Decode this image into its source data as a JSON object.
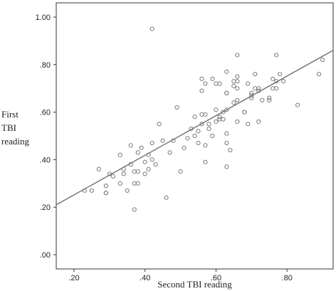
{
  "chart_data": {
    "type": "scatter",
    "xlabel": "Second TBI reading",
    "ylabel_lines": [
      "First",
      "TBI",
      "reading"
    ],
    "xlim": [
      0.15,
      0.93
    ],
    "ylim": [
      -0.06,
      1.06
    ],
    "xticks": [
      0.2,
      0.4,
      0.6,
      0.8
    ],
    "xtick_labels": [
      ".20",
      ".40",
      ".60",
      ".80"
    ],
    "yticks": [
      0.0,
      0.2,
      0.4,
      0.6,
      0.8,
      1.0
    ],
    "ytick_labels": [
      ".00",
      ".20",
      ".40",
      ".60",
      ".80",
      "1.00"
    ],
    "grid": false,
    "fit_line": {
      "x": [
        0.15,
        0.93
      ],
      "y": [
        0.21,
        0.86
      ]
    },
    "points": [
      [
        0.23,
        0.27
      ],
      [
        0.25,
        0.27
      ],
      [
        0.27,
        0.36
      ],
      [
        0.29,
        0.29
      ],
      [
        0.29,
        0.26
      ],
      [
        0.29,
        0.26
      ],
      [
        0.3,
        0.34
      ],
      [
        0.31,
        0.33
      ],
      [
        0.33,
        0.42
      ],
      [
        0.33,
        0.3
      ],
      [
        0.34,
        0.36
      ],
      [
        0.34,
        0.34
      ],
      [
        0.35,
        0.27
      ],
      [
        0.36,
        0.46
      ],
      [
        0.36,
        0.38
      ],
      [
        0.37,
        0.35
      ],
      [
        0.37,
        0.3
      ],
      [
        0.37,
        0.19
      ],
      [
        0.38,
        0.35
      ],
      [
        0.38,
        0.43
      ],
      [
        0.38,
        0.3
      ],
      [
        0.39,
        0.45
      ],
      [
        0.4,
        0.39
      ],
      [
        0.4,
        0.34
      ],
      [
        0.41,
        0.42
      ],
      [
        0.41,
        0.36
      ],
      [
        0.42,
        0.95
      ],
      [
        0.42,
        0.47
      ],
      [
        0.42,
        0.4
      ],
      [
        0.43,
        0.38
      ],
      [
        0.44,
        0.55
      ],
      [
        0.45,
        0.48
      ],
      [
        0.46,
        0.24
      ],
      [
        0.47,
        0.43
      ],
      [
        0.48,
        0.48
      ],
      [
        0.49,
        0.62
      ],
      [
        0.5,
        0.35
      ],
      [
        0.51,
        0.45
      ],
      [
        0.52,
        0.49
      ],
      [
        0.53,
        0.53
      ],
      [
        0.54,
        0.58
      ],
      [
        0.54,
        0.5
      ],
      [
        0.55,
        0.52
      ],
      [
        0.55,
        0.47
      ],
      [
        0.56,
        0.74
      ],
      [
        0.56,
        0.69
      ],
      [
        0.56,
        0.59
      ],
      [
        0.56,
        0.55
      ],
      [
        0.57,
        0.72
      ],
      [
        0.57,
        0.59
      ],
      [
        0.57,
        0.46
      ],
      [
        0.57,
        0.39
      ],
      [
        0.58,
        0.55
      ],
      [
        0.58,
        0.53
      ],
      [
        0.59,
        0.74
      ],
      [
        0.59,
        0.5
      ],
      [
        0.6,
        0.72
      ],
      [
        0.6,
        0.61
      ],
      [
        0.6,
        0.56
      ],
      [
        0.61,
        0.72
      ],
      [
        0.61,
        0.58
      ],
      [
        0.61,
        0.57
      ],
      [
        0.62,
        0.6
      ],
      [
        0.62,
        0.57
      ],
      [
        0.63,
        0.77
      ],
      [
        0.63,
        0.68
      ],
      [
        0.63,
        0.68
      ],
      [
        0.63,
        0.61
      ],
      [
        0.63,
        0.51
      ],
      [
        0.63,
        0.47
      ],
      [
        0.63,
        0.37
      ],
      [
        0.64,
        0.44
      ],
      [
        0.65,
        0.73
      ],
      [
        0.65,
        0.71
      ],
      [
        0.65,
        0.64
      ],
      [
        0.66,
        0.84
      ],
      [
        0.66,
        0.75
      ],
      [
        0.66,
        0.73
      ],
      [
        0.66,
        0.7
      ],
      [
        0.66,
        0.65
      ],
      [
        0.66,
        0.56
      ],
      [
        0.68,
        0.6
      ],
      [
        0.68,
        0.6
      ],
      [
        0.69,
        0.55
      ],
      [
        0.69,
        0.72
      ],
      [
        0.7,
        0.68
      ],
      [
        0.7,
        0.67
      ],
      [
        0.7,
        0.66
      ],
      [
        0.71,
        0.76
      ],
      [
        0.71,
        0.7
      ],
      [
        0.72,
        0.7
      ],
      [
        0.72,
        0.69
      ],
      [
        0.72,
        0.56
      ],
      [
        0.73,
        0.65
      ],
      [
        0.75,
        0.66
      ],
      [
        0.75,
        0.65
      ],
      [
        0.76,
        0.74
      ],
      [
        0.76,
        0.7
      ],
      [
        0.77,
        0.84
      ],
      [
        0.77,
        0.73
      ],
      [
        0.77,
        0.7
      ],
      [
        0.78,
        0.76
      ],
      [
        0.79,
        0.73
      ],
      [
        0.83,
        0.63
      ],
      [
        0.89,
        0.76
      ],
      [
        0.9,
        0.82
      ]
    ]
  },
  "colors": {
    "marker": "#7a7a7a",
    "line": "#6e6e6e",
    "axis": "#333333"
  }
}
